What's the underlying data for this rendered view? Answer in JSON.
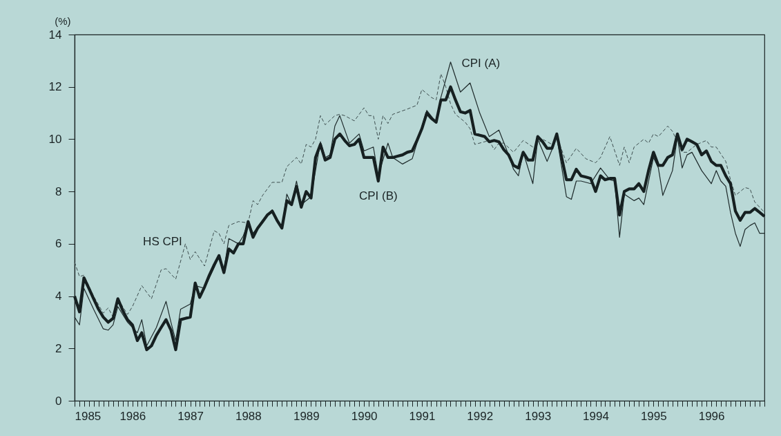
{
  "chart_data": {
    "type": "line",
    "ylabel": "(%)",
    "xlim": [
      "1985-01",
      "1996-12"
    ],
    "ylim": [
      0,
      14
    ],
    "yticks": [
      0,
      2,
      4,
      6,
      8,
      10,
      12,
      14
    ],
    "xticks": [
      "1985",
      {
        "value": "1985-02",
        "label": null
      },
      {
        "value": "1985-03",
        "label": null
      },
      {
        "value": "1985-04",
        "label": null
      },
      {
        "value": "1985-05",
        "label": null
      },
      {
        "value": "1985-06",
        "label": null
      },
      {
        "value": "1985-07",
        "label": null
      },
      {
        "value": "1985-08",
        "label": null
      },
      {
        "value": "1985-09",
        "label": null
      },
      {
        "value": "1985-10",
        "label": null
      },
      {
        "value": "1985-11",
        "label": null
      },
      {
        "value": "1985-12",
        "label": null
      },
      "1986",
      {
        "value": "1986-02",
        "label": null
      },
      {
        "value": "1986-03",
        "label": null
      },
      {
        "value": "1986-04",
        "label": null
      },
      {
        "value": "1986-05",
        "label": null
      },
      {
        "value": "1986-06",
        "label": null
      },
      {
        "value": "1986-07",
        "label": null
      },
      {
        "value": "1986-08",
        "label": null
      },
      {
        "value": "1986-09",
        "label": null
      },
      {
        "value": "1986-10",
        "label": null
      },
      {
        "value": "1986-11",
        "label": null
      },
      {
        "value": "1986-12",
        "label": null
      },
      "1987",
      {
        "value": "1987-02",
        "label": null
      },
      {
        "value": "1987-03",
        "label": null
      },
      {
        "value": "1987-04",
        "label": null
      },
      {
        "value": "1987-05",
        "label": null
      },
      {
        "value": "1987-06",
        "label": null
      },
      {
        "value": "1987-07",
        "label": null
      },
      {
        "value": "1987-08",
        "label": null
      },
      {
        "value": "1987-09",
        "label": null
      },
      {
        "value": "1987-10",
        "label": null
      },
      {
        "value": "1987-11",
        "label": null
      },
      {
        "value": "1987-12",
        "label": null
      },
      "1988",
      {
        "value": "1988-02",
        "label": null
      },
      {
        "value": "1988-03",
        "label": null
      },
      {
        "value": "1988-04",
        "label": null
      },
      {
        "value": "1988-05",
        "label": null
      },
      {
        "value": "1988-06",
        "label": null
      },
      {
        "value": "1988-07",
        "label": null
      },
      {
        "value": "1988-08",
        "label": null
      },
      {
        "value": "1988-09",
        "label": null
      },
      {
        "value": "1988-10",
        "label": null
      },
      {
        "value": "1988-11",
        "label": null
      },
      {
        "value": "1988-12",
        "label": null
      },
      "1989",
      {
        "value": "1989-02",
        "label": null
      },
      {
        "value": "1989-03",
        "label": null
      },
      {
        "value": "1989-04",
        "label": null
      },
      {
        "value": "1989-05",
        "label": null
      },
      {
        "value": "1989-06",
        "label": null
      },
      {
        "value": "1989-07",
        "label": null
      },
      {
        "value": "1989-08",
        "label": null
      },
      {
        "value": "1989-09",
        "label": null
      },
      {
        "value": "1989-10",
        "label": null
      },
      {
        "value": "1989-11",
        "label": null
      },
      {
        "value": "1989-12",
        "label": null
      },
      "1990",
      {
        "value": "1990-02",
        "label": null
      },
      {
        "value": "1990-03",
        "label": null
      },
      {
        "value": "1990-04",
        "label": null
      },
      {
        "value": "1990-05",
        "label": null
      },
      {
        "value": "1990-06",
        "label": null
      },
      {
        "value": "1990-07",
        "label": null
      },
      {
        "value": "1990-08",
        "label": null
      },
      {
        "value": "1990-09",
        "label": null
      },
      {
        "value": "1990-10",
        "label": null
      },
      {
        "value": "1990-11",
        "label": null
      },
      {
        "value": "1990-12",
        "label": null
      },
      "1991",
      {
        "value": "1991-02",
        "label": null
      },
      {
        "value": "1991-03",
        "label": null
      },
      {
        "value": "1991-04",
        "label": null
      },
      {
        "value": "1991-05",
        "label": null
      },
      {
        "value": "1991-06",
        "label": null
      },
      {
        "value": "1991-07",
        "label": null
      },
      {
        "value": "1991-08",
        "label": null
      },
      {
        "value": "1991-09",
        "label": null
      },
      {
        "value": "1991-10",
        "label": null
      },
      {
        "value": "1991-11",
        "label": null
      },
      {
        "value": "1991-12",
        "label": null
      },
      "1992",
      {
        "value": "1992-02",
        "label": null
      },
      {
        "value": "1992-03",
        "label": null
      },
      {
        "value": "1992-04",
        "label": null
      },
      {
        "value": "1992-05",
        "label": null
      },
      {
        "value": "1992-06",
        "label": null
      },
      {
        "value": "1992-07",
        "label": null
      },
      {
        "value": "1992-08",
        "label": null
      },
      {
        "value": "1992-09",
        "label": null
      },
      {
        "value": "1992-10",
        "label": null
      },
      {
        "value": "1992-11",
        "label": null
      },
      {
        "value": "1992-12",
        "label": null
      },
      "1993",
      {
        "value": "1993-02",
        "label": null
      },
      {
        "value": "1993-03",
        "label": null
      },
      {
        "value": "1993-04",
        "label": null
      },
      {
        "value": "1993-05",
        "label": null
      },
      {
        "value": "1993-06",
        "label": null
      },
      {
        "value": "1993-07",
        "label": null
      },
      {
        "value": "1993-08",
        "label": null
      },
      {
        "value": "1993-09",
        "label": null
      },
      {
        "value": "1993-10",
        "label": null
      },
      {
        "value": "1993-11",
        "label": null
      },
      {
        "value": "1993-12",
        "label": null
      },
      "1994",
      {
        "value": "1994-02",
        "label": null
      },
      {
        "value": "1994-03",
        "label": null
      },
      {
        "value": "1994-04",
        "label": null
      },
      {
        "value": "1994-05",
        "label": null
      },
      {
        "value": "1994-06",
        "label": null
      },
      {
        "value": "1994-07",
        "label": null
      },
      {
        "value": "1994-08",
        "label": null
      },
      {
        "value": "1994-09",
        "label": null
      },
      {
        "value": "1994-10",
        "label": null
      },
      {
        "value": "1994-11",
        "label": null
      },
      {
        "value": "1994-12",
        "label": null
      },
      "1995",
      {
        "value": "1995-02",
        "label": null
      },
      {
        "value": "1995-03",
        "label": null
      },
      {
        "value": "1995-04",
        "label": null
      },
      {
        "value": "1995-05",
        "label": null
      },
      {
        "value": "1995-06",
        "label": null
      },
      {
        "value": "1995-07",
        "label": null
      },
      {
        "value": "1995-08",
        "label": null
      },
      {
        "value": "1995-09",
        "label": null
      },
      {
        "value": "1995-10",
        "label": null
      },
      {
        "value": "1995-11",
        "label": null
      },
      {
        "value": "1995-12",
        "label": null
      },
      "1996",
      {
        "value": "1996-02",
        "label": null
      },
      {
        "value": "1996-03",
        "label": null
      },
      {
        "value": "1996-04",
        "label": null
      },
      {
        "value": "1996-05",
        "label": null
      },
      {
        "value": "1996-06",
        "label": null
      },
      {
        "value": "1996-07",
        "label": null
      },
      {
        "value": "1996-08",
        "label": null
      },
      {
        "value": "1996-09",
        "label": null
      },
      {
        "value": "1996-10",
        "label": null
      },
      {
        "value": "1996-11",
        "label": null
      },
      {
        "value": "1996-12",
        "label": null
      }
    ],
    "marker": "none",
    "series": [
      {
        "name": "HS CPI",
        "color": "#3d4d4e",
        "line_style": "dashed",
        "x": [
          "1985-01",
          "1985-02",
          "1985-03",
          "1985-05",
          "1985-07",
          "1985-08",
          "1985-09",
          "1985-10",
          "1985-12",
          "1986-01",
          "1986-03",
          "1986-05",
          "1986-07",
          "1986-08",
          "1986-10",
          "1986-12",
          "1987-01",
          "1987-02",
          "1987-04",
          "1987-06",
          "1987-07",
          "1987-08",
          "1987-09",
          "1987-11",
          "1988-01",
          "1988-02",
          "1988-03",
          "1988-04",
          "1988-06",
          "1988-08",
          "1988-09",
          "1988-11",
          "1988-12",
          "1989-01",
          "1989-02",
          "1989-03",
          "1989-04",
          "1989-05",
          "1989-07",
          "1989-08",
          "1989-09",
          "1989-11",
          "1990-01",
          "1990-02",
          "1990-03",
          "1990-04",
          "1990-05",
          "1990-06",
          "1990-07",
          "1990-10",
          "1990-12",
          "1991-01",
          "1991-03",
          "1991-04",
          "1991-05",
          "1991-06",
          "1991-07",
          "1991-08",
          "1991-10",
          "1991-11",
          "1991-12",
          "1992-03",
          "1992-04",
          "1992-05",
          "1992-06",
          "1992-08",
          "1992-10",
          "1992-12",
          "1993-02",
          "1993-04",
          "1993-05",
          "1993-07",
          "1993-09",
          "1993-11",
          "1994-01",
          "1994-02",
          "1994-04",
          "1994-06",
          "1994-07",
          "1994-08",
          "1994-09",
          "1994-11",
          "1994-12",
          "1995-01",
          "1995-02",
          "1995-04",
          "1995-05",
          "1995-07",
          "1995-08",
          "1995-10",
          "1995-12",
          "1996-01",
          "1996-02",
          "1996-04",
          "1996-05",
          "1996-06",
          "1996-08",
          "1996-09",
          "1996-10",
          "1996-12"
        ],
        "values": [
          5.3,
          4.75,
          4.8,
          4.0,
          3.35,
          3.55,
          3.2,
          3.9,
          3.3,
          3.6,
          4.4,
          3.9,
          5.0,
          5.05,
          4.65,
          6.0,
          5.4,
          5.7,
          5.15,
          6.5,
          6.4,
          6.0,
          6.7,
          6.85,
          6.8,
          7.65,
          7.5,
          7.85,
          8.35,
          8.35,
          8.95,
          9.3,
          9.05,
          9.8,
          9.7,
          10.0,
          10.9,
          10.55,
          10.9,
          10.95,
          10.9,
          10.7,
          11.2,
          10.9,
          10.9,
          10.0,
          10.9,
          10.6,
          10.95,
          11.15,
          11.3,
          11.9,
          11.6,
          11.5,
          12.5,
          12.0,
          11.35,
          10.95,
          10.65,
          10.4,
          9.8,
          9.95,
          9.6,
          9.85,
          9.85,
          9.5,
          9.95,
          9.7,
          10.0,
          9.8,
          10.1,
          9.1,
          9.65,
          9.25,
          9.1,
          9.3,
          10.1,
          9.0,
          9.7,
          9.1,
          9.7,
          10.0,
          9.85,
          10.2,
          10.1,
          10.5,
          10.3,
          9.5,
          9.5,
          9.8,
          9.95,
          9.7,
          9.7,
          9.15,
          8.45,
          7.85,
          8.15,
          8.1,
          7.6,
          7.2
        ]
      },
      {
        "name": "CPI (A)",
        "color": "#1e2a2b",
        "line_style": "solid",
        "x": [
          "1985-01",
          "1985-02",
          "1985-03",
          "1985-05",
          "1985-07",
          "1985-08",
          "1985-09",
          "1985-10",
          "1985-12",
          "1986-02",
          "1986-03",
          "1986-04",
          "1986-06",
          "1986-08",
          "1986-09",
          "1986-10",
          "1986-11",
          "1987-01",
          "1987-02",
          "1987-04",
          "1987-06",
          "1987-07",
          "1987-08",
          "1987-09",
          "1987-11",
          "1987-12",
          "1988-01",
          "1988-02",
          "1988-04",
          "1988-06",
          "1988-08",
          "1988-09",
          "1988-10",
          "1988-11",
          "1988-12",
          "1989-02",
          "1989-04",
          "1989-05",
          "1989-06",
          "1989-07",
          "1989-08",
          "1989-10",
          "1989-12",
          "1990-01",
          "1990-03",
          "1990-04",
          "1990-06",
          "1990-07",
          "1990-09",
          "1990-11",
          "1991-02",
          "1991-04",
          "1991-05",
          "1991-07",
          "1991-09",
          "1991-11",
          "1992-01",
          "1992-03",
          "1992-05",
          "1992-07",
          "1992-08",
          "1992-09",
          "1992-10",
          "1992-12",
          "1993-01",
          "1993-03",
          "1993-04",
          "1993-05",
          "1993-07",
          "1993-08",
          "1993-09",
          "1993-10",
          "1993-12",
          "1994-02",
          "1994-04",
          "1994-05",
          "1994-06",
          "1994-07",
          "1994-09",
          "1994-10",
          "1994-11",
          "1995-01",
          "1995-02",
          "1995-03",
          "1995-05",
          "1995-06",
          "1995-07",
          "1995-08",
          "1995-09",
          "1995-11",
          "1996-01",
          "1996-02",
          "1996-03",
          "1996-04",
          "1996-05",
          "1996-06",
          "1996-07",
          "1996-08",
          "1996-09",
          "1996-10",
          "1996-11",
          "1996-12"
        ],
        "values": [
          3.2,
          2.9,
          4.3,
          3.5,
          2.75,
          2.7,
          2.9,
          3.6,
          3.0,
          2.6,
          3.1,
          2.1,
          2.8,
          3.8,
          3.0,
          2.3,
          3.5,
          3.7,
          4.4,
          4.3,
          5.1,
          5.5,
          5.0,
          6.2,
          6.0,
          6.3,
          6.8,
          6.4,
          6.9,
          7.3,
          6.6,
          7.9,
          7.5,
          8.4,
          7.5,
          7.8,
          9.9,
          9.3,
          9.4,
          10.5,
          10.9,
          9.85,
          10.2,
          9.55,
          9.7,
          8.6,
          9.85,
          9.3,
          9.05,
          9.25,
          11.1,
          10.65,
          11.6,
          12.95,
          11.8,
          12.15,
          11.0,
          10.1,
          10.35,
          9.4,
          8.85,
          8.6,
          9.5,
          8.3,
          10.0,
          9.15,
          9.6,
          10.1,
          7.8,
          7.7,
          8.4,
          8.4,
          8.3,
          8.9,
          8.45,
          8.4,
          6.25,
          7.9,
          7.65,
          7.75,
          7.5,
          9.3,
          8.9,
          7.85,
          8.8,
          10.1,
          8.9,
          9.4,
          9.5,
          8.8,
          8.3,
          8.8,
          8.4,
          8.2,
          7.2,
          6.4,
          5.9,
          6.55,
          6.7,
          6.8,
          6.4,
          6.4
        ]
      },
      {
        "name": "CPI (B)",
        "color": "#162021",
        "line_style": "solid",
        "x": [
          "1985-01",
          "1985-02",
          "1985-03",
          "1985-04",
          "1985-05",
          "1985-06",
          "1985-07",
          "1985-08",
          "1985-09",
          "1985-10",
          "1985-11",
          "1985-12",
          "1986-01",
          "1986-02",
          "1986-03",
          "1986-04",
          "1986-05",
          "1986-06",
          "1986-07",
          "1986-08",
          "1986-09",
          "1986-10",
          "1986-11",
          "1986-12",
          "1987-01",
          "1987-02",
          "1987-03",
          "1987-04",
          "1987-05",
          "1987-06",
          "1987-07",
          "1987-08",
          "1987-09",
          "1987-10",
          "1987-11",
          "1987-12",
          "1988-01",
          "1988-02",
          "1988-03",
          "1988-04",
          "1988-05",
          "1988-06",
          "1988-07",
          "1988-08",
          "1988-09",
          "1988-10",
          "1988-11",
          "1988-12",
          "1989-01",
          "1989-02",
          "1989-03",
          "1989-04",
          "1989-05",
          "1989-06",
          "1989-07",
          "1989-08",
          "1989-09",
          "1989-10",
          "1989-11",
          "1989-12",
          "1990-01",
          "1990-02",
          "1990-03",
          "1990-04",
          "1990-05",
          "1990-06",
          "1990-07",
          "1990-08",
          "1990-09",
          "1990-10",
          "1990-11",
          "1990-12",
          "1991-01",
          "1991-02",
          "1991-03",
          "1991-04",
          "1991-05",
          "1991-06",
          "1991-07",
          "1991-08",
          "1991-09",
          "1991-10",
          "1991-11",
          "1991-12",
          "1992-01",
          "1992-02",
          "1992-03",
          "1992-04",
          "1992-05",
          "1992-06",
          "1992-07",
          "1992-08",
          "1992-09",
          "1992-10",
          "1992-11",
          "1992-12",
          "1993-01",
          "1993-02",
          "1993-03",
          "1993-04",
          "1993-05",
          "1993-06",
          "1993-07",
          "1993-08",
          "1993-09",
          "1993-10",
          "1993-11",
          "1993-12",
          "1994-01",
          "1994-02",
          "1994-03",
          "1994-04",
          "1994-05",
          "1994-06",
          "1994-07",
          "1994-08",
          "1994-09",
          "1994-10",
          "1994-11",
          "1994-12",
          "1995-01",
          "1995-02",
          "1995-03",
          "1995-04",
          "1995-05",
          "1995-06",
          "1995-07",
          "1995-08",
          "1995-09",
          "1995-10",
          "1995-11",
          "1995-12",
          "1996-01",
          "1996-02",
          "1996-03",
          "1996-04",
          "1996-05",
          "1996-06",
          "1996-07",
          "1996-08",
          "1996-09",
          "1996-10",
          "1996-11",
          "1996-12"
        ],
        "values": [
          4.0,
          3.4,
          4.7,
          4.3,
          3.9,
          3.5,
          3.2,
          3.0,
          3.15,
          3.9,
          3.45,
          3.1,
          2.9,
          2.3,
          2.6,
          1.95,
          2.1,
          2.5,
          2.8,
          3.1,
          2.7,
          1.95,
          3.1,
          3.15,
          3.2,
          4.5,
          3.95,
          4.35,
          4.8,
          5.2,
          5.55,
          4.9,
          5.8,
          5.65,
          6.0,
          6.0,
          6.85,
          6.25,
          6.6,
          6.85,
          7.1,
          7.25,
          6.9,
          6.6,
          7.65,
          7.5,
          8.2,
          7.4,
          8.0,
          7.75,
          9.3,
          9.8,
          9.2,
          9.3,
          10.0,
          10.2,
          9.95,
          9.75,
          9.8,
          10.0,
          9.3,
          9.3,
          9.3,
          8.4,
          9.7,
          9.3,
          9.3,
          9.35,
          9.4,
          9.5,
          9.55,
          9.95,
          10.4,
          11.0,
          10.8,
          10.65,
          11.5,
          11.5,
          12.0,
          11.5,
          11.05,
          11.0,
          11.1,
          10.2,
          10.15,
          10.1,
          9.9,
          9.95,
          9.9,
          9.6,
          9.4,
          9.0,
          8.9,
          9.5,
          9.2,
          9.2,
          10.1,
          9.9,
          9.65,
          9.65,
          10.2,
          9.3,
          8.45,
          8.45,
          8.85,
          8.6,
          8.55,
          8.5,
          8.0,
          8.6,
          8.45,
          8.5,
          8.5,
          7.1,
          8.0,
          8.1,
          8.1,
          8.3,
          8.0,
          8.8,
          9.5,
          9.0,
          9.0,
          9.3,
          9.4,
          10.2,
          9.6,
          10.0,
          9.9,
          9.8,
          9.4,
          9.55,
          9.15,
          9.0,
          9.0,
          8.6,
          8.3,
          7.25,
          6.9,
          7.2,
          7.2,
          7.35,
          7.2,
          7.05
        ]
      }
    ]
  }
}
